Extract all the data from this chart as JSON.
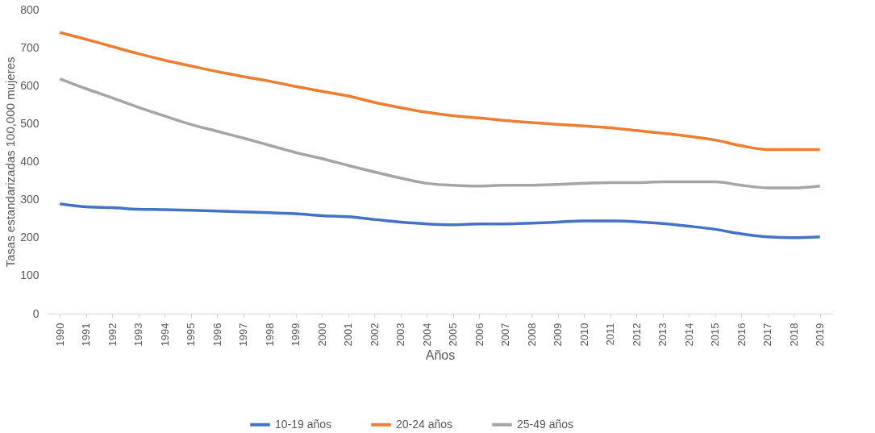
{
  "chart_data": {
    "type": "line",
    "xlabel": "Años",
    "ylabel": "Tasas estandarizadas 100,000 mujeres",
    "categories": [
      "1990",
      "1991",
      "1992",
      "1993",
      "1994",
      "1995",
      "1996",
      "1997",
      "1998",
      "1999",
      "2000",
      "2001",
      "2002",
      "2003",
      "2004",
      "2005",
      "2006",
      "2007",
      "2008",
      "2009",
      "2010",
      "2011",
      "2012",
      "2013",
      "2014",
      "2015",
      "2016",
      "2017",
      "2018",
      "2019"
    ],
    "series": [
      {
        "name": "10-19 años",
        "color": "#4472c4",
        "values": [
          289,
          281,
          279,
          275,
          274,
          272,
          270,
          268,
          266,
          263,
          258,
          255,
          248,
          241,
          236,
          234,
          236,
          236,
          238,
          241,
          244,
          244,
          242,
          237,
          230,
          222,
          210,
          202,
          200,
          202
        ]
      },
      {
        "name": "20-24 años",
        "color": "#ed7d31",
        "values": [
          740,
          722,
          703,
          684,
          667,
          652,
          637,
          624,
          612,
          598,
          585,
          573,
          556,
          542,
          530,
          521,
          515,
          508,
          503,
          498,
          494,
          489,
          482,
          475,
          467,
          457,
          442,
          432,
          432,
          432
        ]
      },
      {
        "name": "25-49 años",
        "color": "#a5a5a5",
        "values": [
          618,
          592,
          568,
          543,
          520,
          498,
          480,
          462,
          443,
          424,
          408,
          390,
          373,
          357,
          343,
          338,
          336,
          338,
          338,
          340,
          343,
          345,
          345,
          347,
          347,
          347,
          338,
          331,
          331,
          336
        ]
      }
    ],
    "ylim": [
      0,
      800
    ],
    "yticks": [
      0,
      100,
      200,
      300,
      400,
      500,
      600,
      700,
      800
    ],
    "grid": false,
    "legend": "bottom",
    "line_style": "solid",
    "marker": "none"
  }
}
